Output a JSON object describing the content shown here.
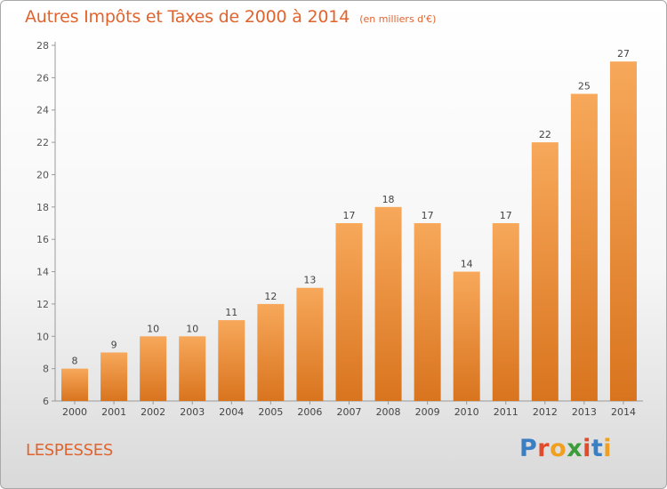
{
  "header": {
    "title": "Autres Impôts et Taxes de 2000 à 2014",
    "subtitle": "(en milliers d'€)"
  },
  "footer": {
    "commune": "LESPESSES",
    "logo_text": "Proxiti"
  },
  "colors": {
    "title": "#e0642e",
    "bar_light": "#f7a85a",
    "bar_dark": "#d9741e",
    "logo": [
      "#3a7fc4",
      "#e24a2c",
      "#f0a020",
      "#3a9c3a",
      "#e24a2c",
      "#3a7fc4",
      "#f0a020"
    ]
  },
  "chart_data": {
    "type": "bar",
    "categories": [
      "2000",
      "2001",
      "2002",
      "2003",
      "2004",
      "2005",
      "2006",
      "2007",
      "2008",
      "2009",
      "2010",
      "2011",
      "2012",
      "2013",
      "2014"
    ],
    "values": [
      8,
      9,
      10,
      10,
      11,
      12,
      13,
      17,
      18,
      17,
      14,
      17,
      22,
      25,
      27
    ],
    "title": "Autres Impôts et Taxes de 2000 à 2014",
    "xlabel": "",
    "ylabel": "",
    "ylim": [
      6,
      28
    ],
    "yticks": [
      6,
      8,
      10,
      12,
      14,
      16,
      18,
      20,
      22,
      24,
      26,
      28
    ],
    "grid": false,
    "data_labels": true
  }
}
